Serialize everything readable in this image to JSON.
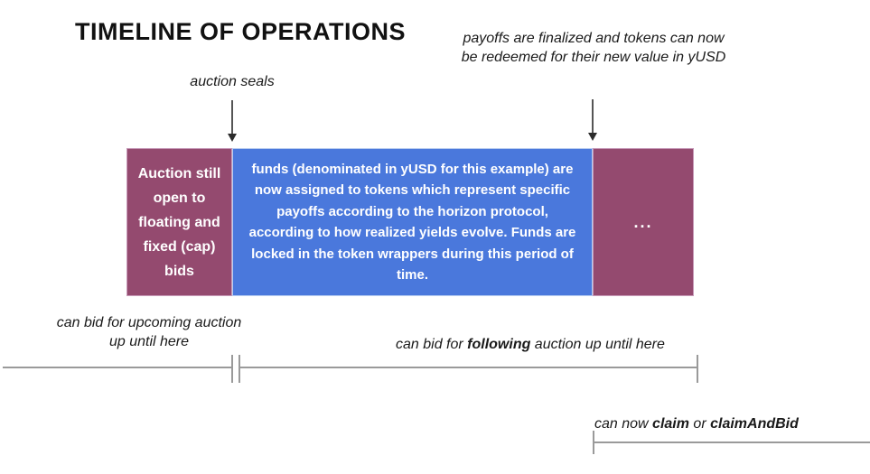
{
  "title": "TIMELINE OF OPERATIONS",
  "annotations": {
    "auction_seals": "auction seals",
    "payoffs_finalized": "payoffs are finalized and tokens can now be redeemed for their new value in yUSD"
  },
  "timeline": {
    "segments": [
      {
        "id": "auction-open",
        "text": "Auction still open to floating and fixed (cap) bids",
        "color": "#944A6F"
      },
      {
        "id": "funds-locked",
        "text": "funds (denominated in yUSD for this example) are now assigned to tokens which represent specific payoffs according to the horizon protocol, according to how realized yields evolve. Funds are locked in the token wrappers during this period of time.",
        "color": "#4A78DC"
      },
      {
        "id": "next-period",
        "text": "...",
        "color": "#944A6F"
      }
    ]
  },
  "bottom_notes": {
    "upcoming": "can bid for upcoming auction up until here",
    "following": {
      "pre": "can bid for ",
      "bold": "following",
      "post": " auction up until here"
    },
    "claim": {
      "pre": "can now ",
      "bold1": "claim",
      "mid": " or ",
      "bold2": "claimAndBid"
    }
  },
  "colors": {
    "segment_purple": "#944A6F",
    "segment_blue": "#4A78DC",
    "line_gray": "#9a9a9a",
    "arrow_dark": "#2b2b2b",
    "background": "#ffffff"
  }
}
